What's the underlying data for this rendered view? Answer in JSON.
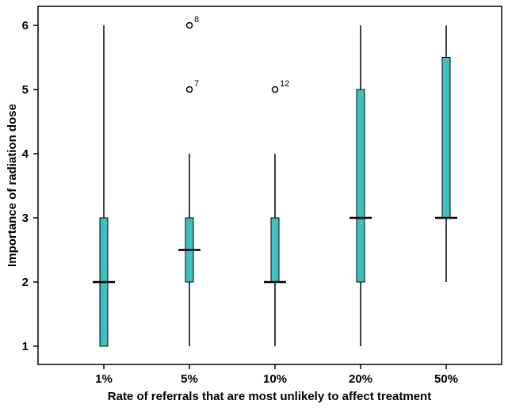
{
  "chart_data": {
    "type": "box",
    "xlabel": "Rate of referrals that are most unlikely to affect treatment",
    "ylabel": "Importance of radiation dose",
    "ylim": [
      0.7,
      6.3
    ],
    "yticks": [
      1,
      2,
      3,
      4,
      5,
      6
    ],
    "grid": false,
    "box_color": "#3fbfbf",
    "categories": [
      "1%",
      "5%",
      "10%",
      "20%",
      "50%"
    ],
    "boxes": [
      {
        "category": "1%",
        "whisker_low": 1,
        "q1": 1,
        "median": 2,
        "q3": 3,
        "whisker_high": 6,
        "outliers": []
      },
      {
        "category": "5%",
        "whisker_low": 1,
        "q1": 2,
        "median": 2.5,
        "q3": 3,
        "whisker_high": 4,
        "outliers": [
          {
            "value": 5,
            "label": "7"
          },
          {
            "value": 6,
            "label": "8"
          }
        ]
      },
      {
        "category": "10%",
        "whisker_low": 1,
        "q1": 2,
        "median": 2,
        "q3": 3,
        "whisker_high": 4,
        "outliers": [
          {
            "value": 5,
            "label": "12"
          }
        ]
      },
      {
        "category": "20%",
        "whisker_low": 1,
        "q1": 2,
        "median": 3,
        "q3": 5,
        "whisker_high": 6,
        "outliers": []
      },
      {
        "category": "50%",
        "whisker_low": 2,
        "q1": 3,
        "median": 3,
        "q3": 5.5,
        "whisker_high": 6,
        "outliers": []
      }
    ]
  }
}
